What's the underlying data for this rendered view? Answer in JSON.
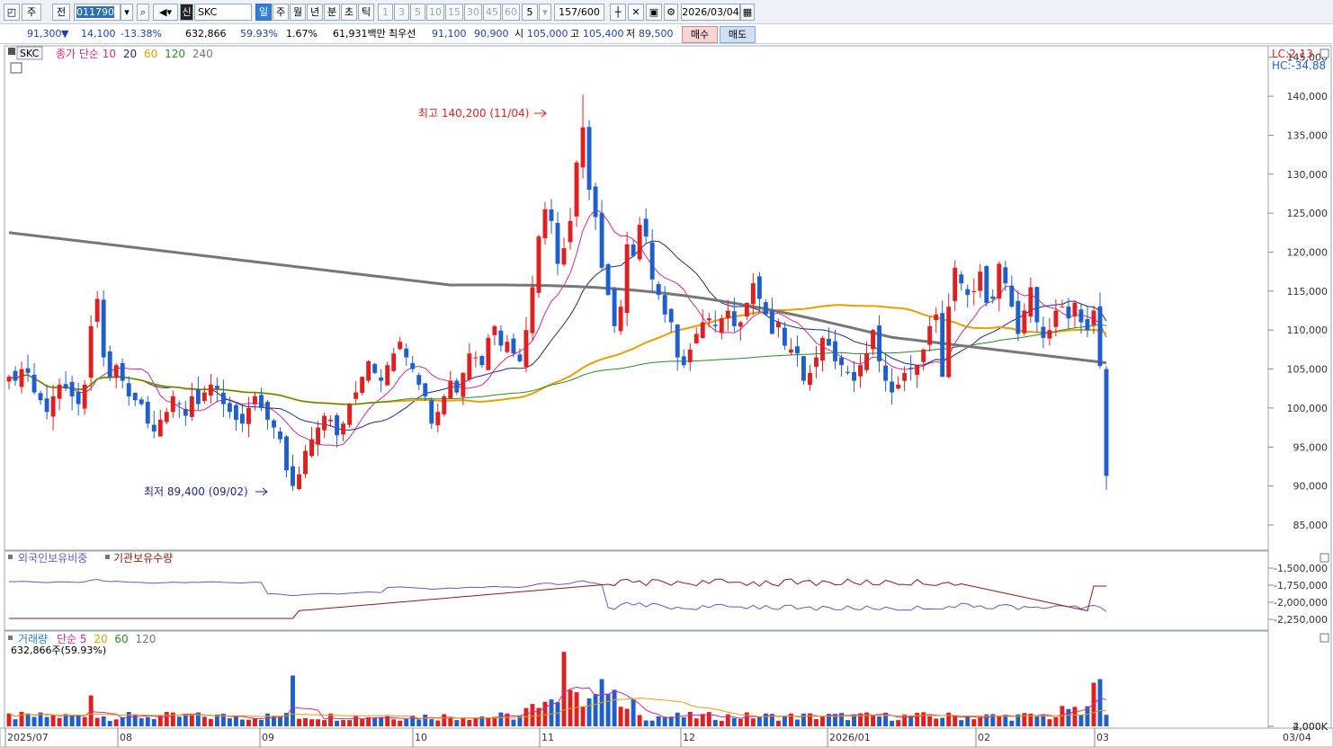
{
  "toolbar": {
    "btn_ju": "주",
    "btn_jeon": "전",
    "code": "011790",
    "sin": "신",
    "name": "SKC",
    "periods": [
      "일",
      "주",
      "월",
      "년",
      "분",
      "초",
      "틱"
    ],
    "intervals": [
      "1",
      "3",
      "5",
      "10",
      "15",
      "30",
      "45",
      "60"
    ],
    "interval_sel": "5",
    "count": "157",
    "count_total": "/600",
    "date": "2026/03/04"
  },
  "info": {
    "price": "91,300",
    "arrow": "▼",
    "change": "14,100",
    "pct": "-13.38%",
    "volume": "632,866",
    "vol_pct": "59.93%",
    "turn": "1.67%",
    "amount": "61,931백만",
    "bid_label": "최우선",
    "bid1": "91,100",
    "bid2": "90,900",
    "open_label": "시",
    "open": "105,000",
    "high_label": "고",
    "high": "105,400",
    "low_label": "저",
    "low": "89,500",
    "buy": "매수",
    "sell": "매도"
  },
  "price_panel": {
    "title": "SKC",
    "legend": [
      {
        "text": "종가 단순 10",
        "color": "#cc2b9e"
      },
      {
        "text": "20",
        "color": "#1b2a8c"
      },
      {
        "text": "60",
        "color": "#e8a000"
      },
      {
        "text": "120",
        "color": "#2a8a2a"
      },
      {
        "text": "240",
        "color": "#777777"
      }
    ],
    "lc": "LC:2.13",
    "hc": "HC:-34.88",
    "high_note": "최고 140,200 (11/04)",
    "low_note": "최저 89,400 (09/02)",
    "yticks": [
      "145,000",
      "140,000",
      "135,000",
      "130,000",
      "125,000",
      "120,000",
      "115,000",
      "110,000",
      "105,000",
      "100,000",
      "95,000",
      "90,000",
      "85,000"
    ]
  },
  "holding_panel": {
    "legend1": "외국인보유비중",
    "legend2": "기관보유수량",
    "color1": "#6a55c8",
    "color2": "#8b1a1a",
    "yticks": [
      "-1,500,000",
      "-1,750,000",
      "-2,000,000",
      "-2,250,000"
    ]
  },
  "volume_panel": {
    "legend": [
      {
        "text": "거래량",
        "color": "#2f7fd6"
      },
      {
        "text": "단순 5",
        "color": "#cc2b9e"
      },
      {
        "text": "20",
        "color": "#e8a000"
      },
      {
        "text": "60",
        "color": "#2a8a2a"
      },
      {
        "text": "120",
        "color": "#777777"
      }
    ],
    "sub": "632,866주(59.93%)",
    "yticks": [
      "4,000K",
      "2,000K"
    ]
  },
  "xaxis": {
    "labels": [
      "2025/07",
      "08",
      "09",
      "10",
      "11",
      "12",
      "2026/01",
      "02",
      "03"
    ],
    "right": "03/04"
  },
  "colors": {
    "up": "#e02020",
    "down": "#1f5fcc",
    "accent": "#2f7fd6"
  },
  "chart_data": {
    "type": "candlestick",
    "x_start": "2025/07",
    "x_end": "03/04",
    "ylim": [
      82000,
      146000
    ],
    "high": {
      "value": 140200,
      "date": "11/04"
    },
    "low": {
      "value": 89400,
      "date": "09/02"
    },
    "closes": [
      104000,
      103500,
      105000,
      104500,
      102000,
      101000,
      99500,
      101500,
      103000,
      102500,
      101500,
      100500,
      103000,
      110500,
      114000,
      106500,
      104000,
      105500,
      103500,
      101500,
      101000,
      100500,
      98000,
      97000,
      98500,
      99500,
      101500,
      100500,
      99000,
      101500,
      100500,
      102000,
      103000,
      102500,
      100500,
      99500,
      98500,
      98000,
      100000,
      101500,
      100000,
      98500,
      97500,
      96000,
      92000,
      90000,
      91500,
      94500,
      96000,
      97500,
      99000,
      98500,
      96500,
      98000,
      100500,
      102000,
      104000,
      106000,
      104500,
      103500,
      105500,
      107000,
      108500,
      106500,
      105000,
      103000,
      101500,
      98000,
      99500,
      101500,
      103500,
      102000,
      104500,
      107000,
      106500,
      105500,
      109000,
      110500,
      108000,
      108500,
      107000,
      106000,
      110000,
      115500,
      122000,
      125500,
      124000,
      118500,
      120500,
      124000,
      131500,
      136000,
      128000,
      124500,
      118000,
      114500,
      110500,
      113000,
      121000,
      119500,
      123500,
      122000,
      116500,
      114500,
      112000,
      111000,
      106500,
      105500,
      107500,
      109500,
      111000,
      111500,
      110500,
      111500,
      112500,
      110500,
      111000,
      113500,
      116000,
      114000,
      112000,
      109500,
      111000,
      108000,
      107500,
      107000,
      103500,
      104500,
      106500,
      109000,
      108000,
      106000,
      105500,
      104500,
      103500,
      105500,
      107000,
      110000,
      106000,
      103500,
      102000,
      103000,
      104500,
      105000,
      105500,
      107500,
      110500,
      112000,
      104000,
      113000,
      118000,
      116000,
      114500,
      115000,
      117500,
      113500,
      114000,
      118500,
      116000,
      113000,
      109500,
      112500,
      115500,
      111000,
      109000,
      110000,
      112500,
      113000,
      111500,
      113500,
      111000,
      110000,
      112500,
      105400,
      91300
    ],
    "ma_periods": [
      10,
      20,
      60,
      120,
      240
    ],
    "volume_ylim": [
      0,
      5000000
    ],
    "volume_last": 632866,
    "volume_last_pct": "59.93%"
  }
}
